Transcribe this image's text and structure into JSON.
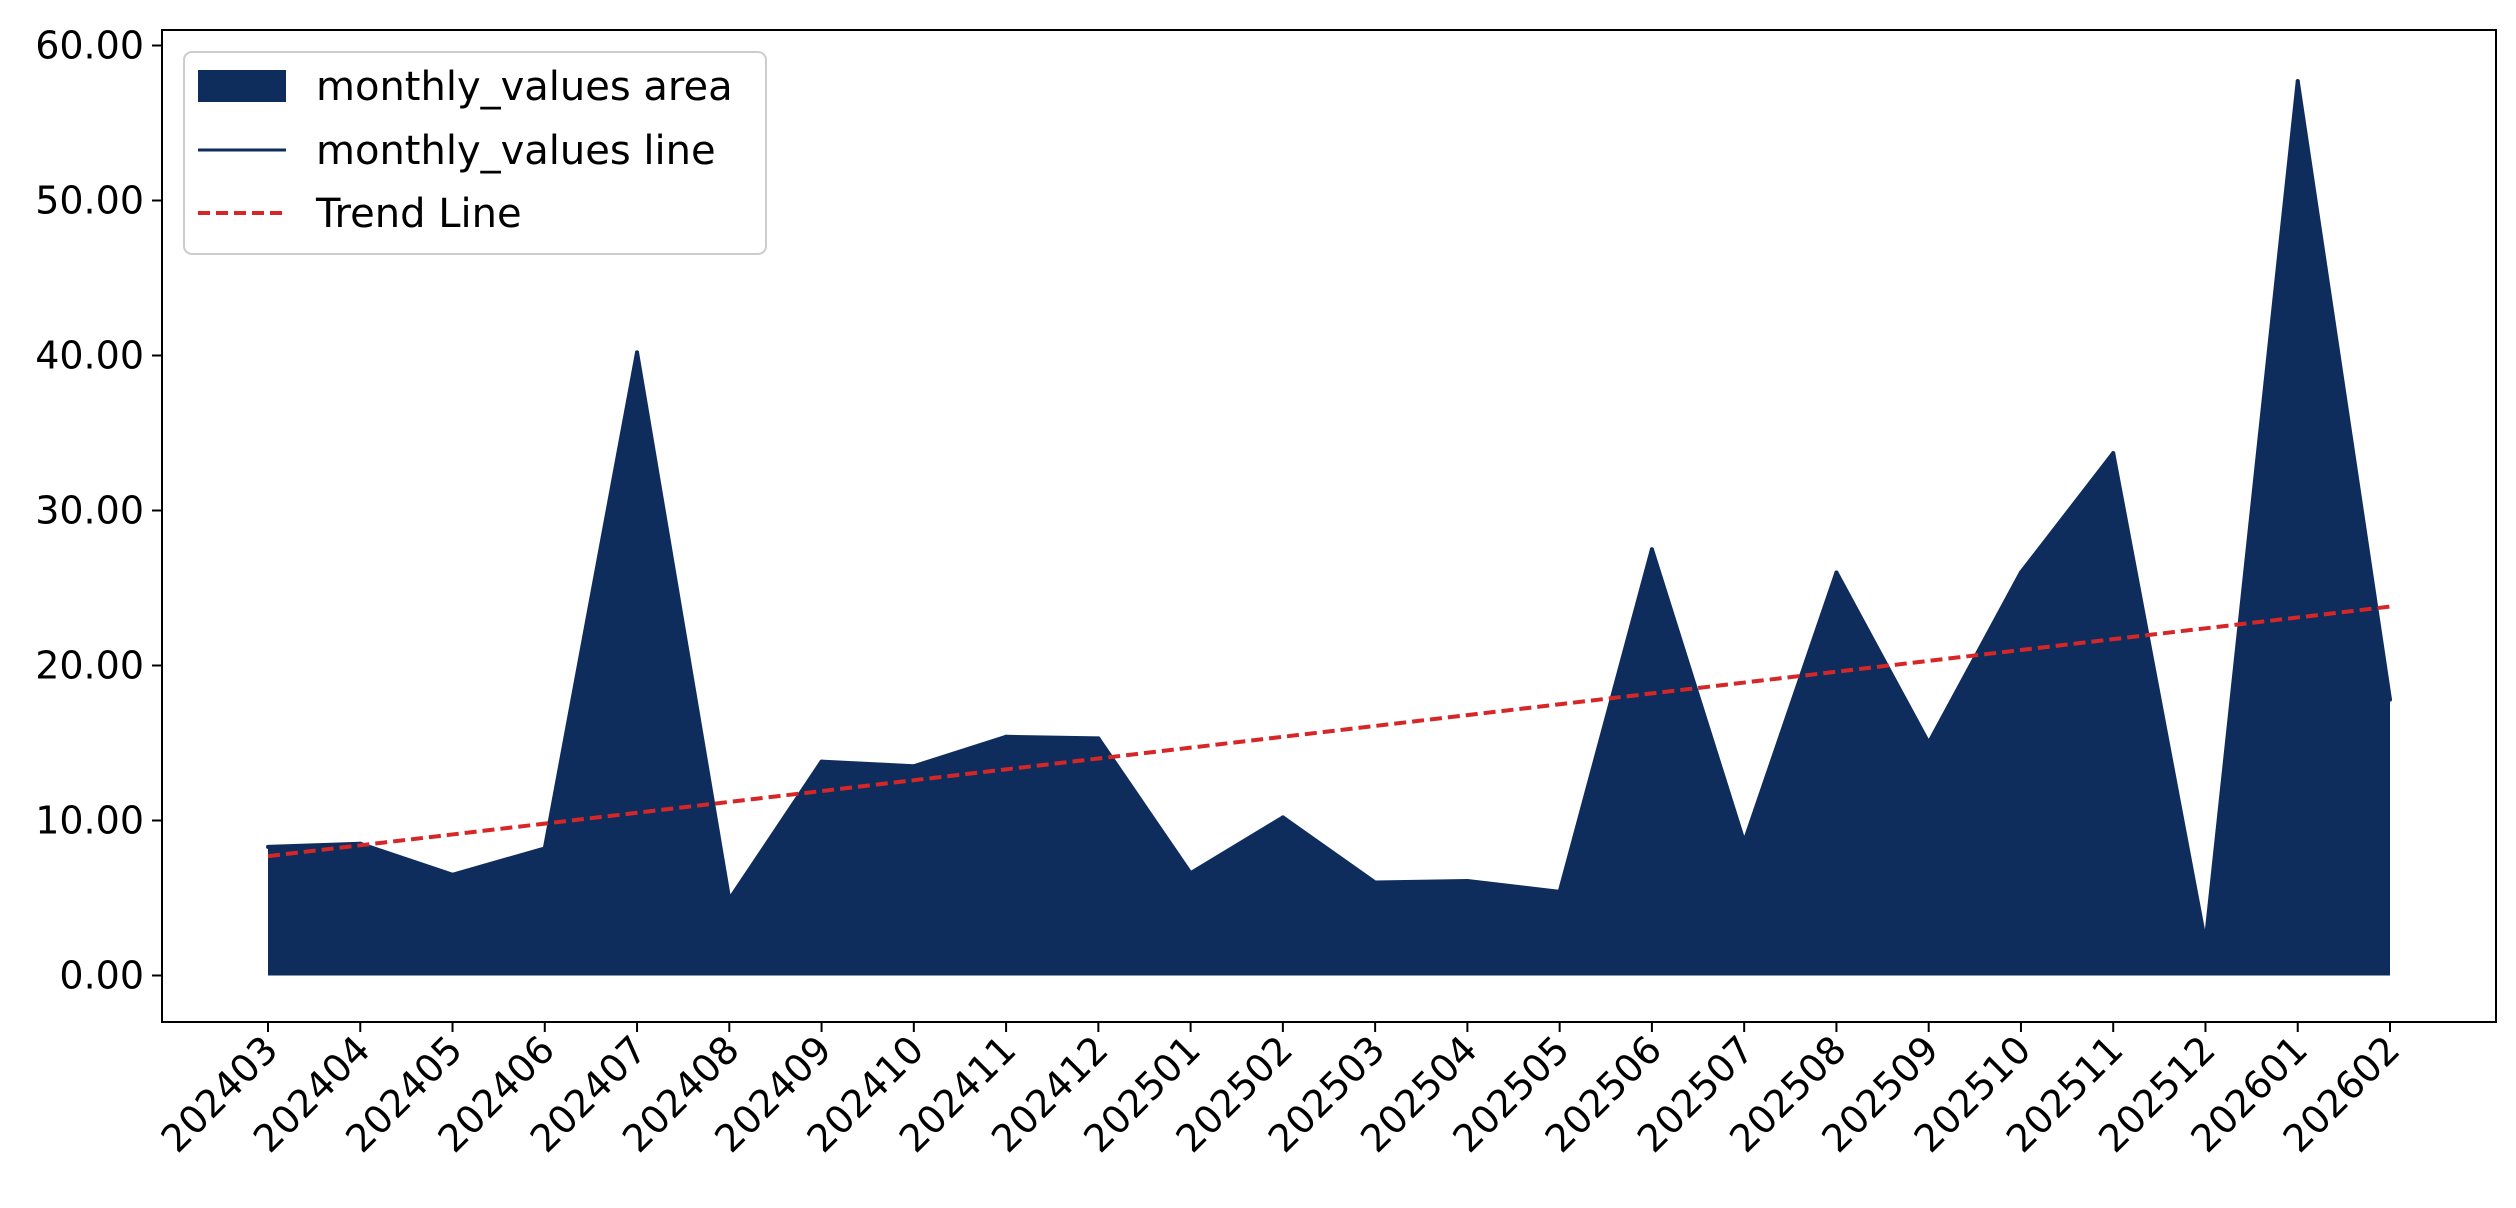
{
  "chart_data": {
    "type": "area",
    "title": "",
    "xlabel": "",
    "ylabel": "",
    "categories": [
      "202403",
      "202404",
      "202405",
      "202406",
      "202407",
      "202408",
      "202409",
      "202410",
      "202411",
      "202412",
      "202501",
      "202502",
      "202503",
      "202504",
      "202505",
      "202506",
      "202507",
      "202508",
      "202509",
      "202510",
      "202511",
      "202512",
      "202601",
      "202602"
    ],
    "series": [
      {
        "name": "monthly_values area",
        "kind": "area",
        "color": "#0f2d5c",
        "values": [
          8.3,
          8.5,
          6.5,
          8.2,
          40.2,
          4.9,
          13.8,
          13.5,
          15.4,
          15.3,
          6.6,
          10.2,
          6.0,
          6.1,
          5.4,
          27.5,
          8.6,
          26.0,
          15.0,
          26.0,
          33.7,
          2.1,
          57.7,
          17.8
        ]
      },
      {
        "name": "monthly_values line",
        "kind": "line",
        "color": "#0f2d5c",
        "values": [
          8.3,
          8.5,
          6.5,
          8.2,
          40.2,
          4.9,
          13.8,
          13.5,
          15.4,
          15.3,
          6.6,
          10.2,
          6.0,
          6.1,
          5.4,
          27.5,
          8.6,
          26.0,
          15.0,
          26.0,
          33.7,
          2.1,
          57.7,
          17.8
        ]
      },
      {
        "name": "Trend Line",
        "kind": "dashed-line",
        "color": "#d62728",
        "values": [
          7.7,
          8.4,
          9.1,
          9.8,
          10.5,
          11.2,
          11.9,
          12.6,
          13.3,
          14.0,
          14.7,
          15.4,
          16.1,
          16.8,
          17.5,
          18.2,
          18.9,
          19.6,
          20.3,
          21.0,
          21.7,
          22.4,
          23.1,
          23.8
        ]
      }
    ],
    "ylim": [
      -3,
      61
    ],
    "yticks": [
      "0.00",
      "10.00",
      "20.00",
      "30.00",
      "40.00",
      "50.00",
      "60.00"
    ],
    "ytick_values": [
      0,
      10,
      20,
      30,
      40,
      50,
      60
    ],
    "grid": false,
    "legend_position": "top-left"
  }
}
